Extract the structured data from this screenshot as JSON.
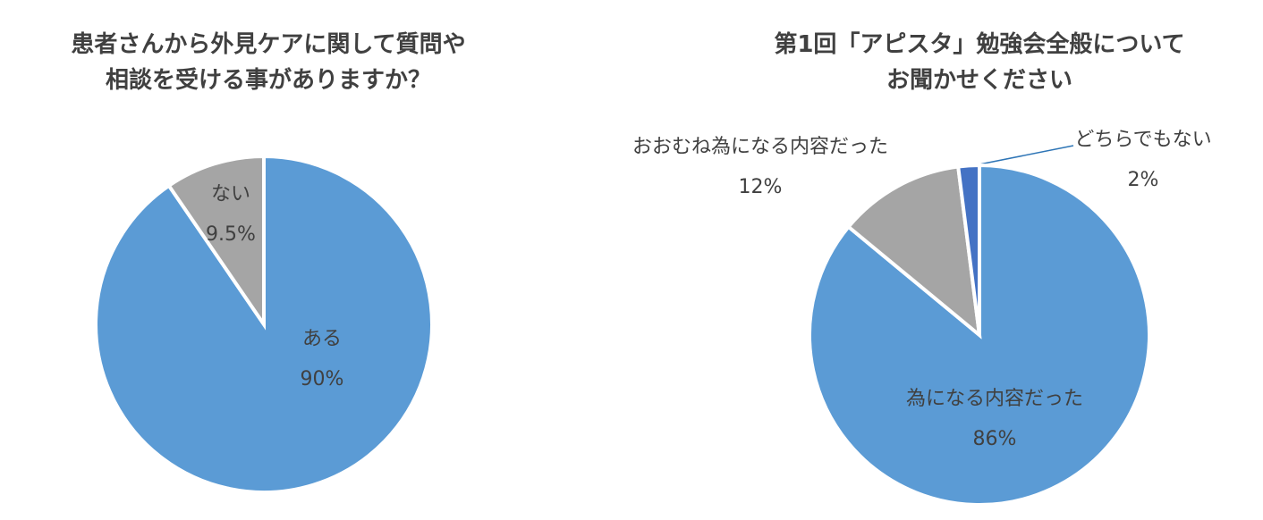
{
  "chart_data": [
    {
      "type": "pie",
      "title": "患者さんから外見ケアに関して質問や\n相談を受ける事がありますか？",
      "categories": [
        "ある",
        "ない"
      ],
      "values": [
        90,
        9.5
      ],
      "value_labels": [
        "90%",
        "9.5%"
      ],
      "colors": [
        "#5b9bd5",
        "#a5a5a5"
      ]
    },
    {
      "type": "pie",
      "title": "第1回「アピスタ」勉強会全般について\nお聞かせください",
      "categories": [
        "為になる内容だった",
        "おおむね為になる内容だった",
        "どちらでもない"
      ],
      "values": [
        86,
        12,
        2
      ],
      "value_labels": [
        "86%",
        "12%",
        "2%"
      ],
      "colors": [
        "#5b9bd5",
        "#a5a5a5",
        "#4472c4"
      ]
    }
  ]
}
